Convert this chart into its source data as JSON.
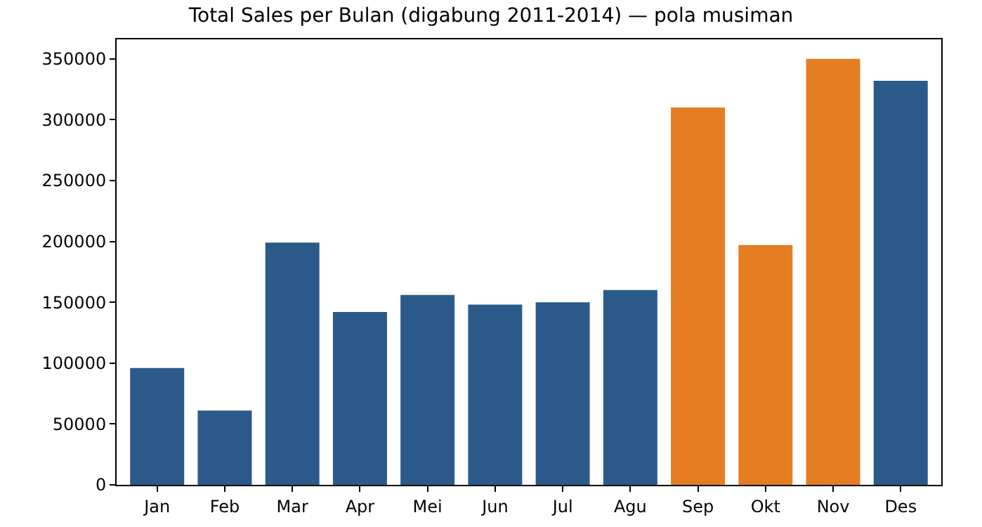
{
  "chart_data": {
    "type": "bar",
    "title": "Total Sales per Bulan (digabung 2011-2014) — pola musiman",
    "categories": [
      "Jan",
      "Feb",
      "Mar",
      "Apr",
      "Mei",
      "Jun",
      "Jul",
      "Agu",
      "Sep",
      "Okt",
      "Nov",
      "Des"
    ],
    "values": [
      96000,
      61000,
      199000,
      142000,
      156000,
      148000,
      150000,
      160000,
      310000,
      197000,
      350000,
      332000
    ],
    "colors": [
      "#2b5a8a",
      "#2b5a8a",
      "#2b5a8a",
      "#2b5a8a",
      "#2b5a8a",
      "#2b5a8a",
      "#2b5a8a",
      "#2b5a8a",
      "#e57e22",
      "#e57e22",
      "#e57e22",
      "#2b5a8a"
    ],
    "ylim": [
      0,
      366000
    ],
    "yticks": [
      0,
      50000,
      100000,
      150000,
      200000,
      250000,
      300000,
      350000
    ],
    "grid": false,
    "legend": false
  }
}
